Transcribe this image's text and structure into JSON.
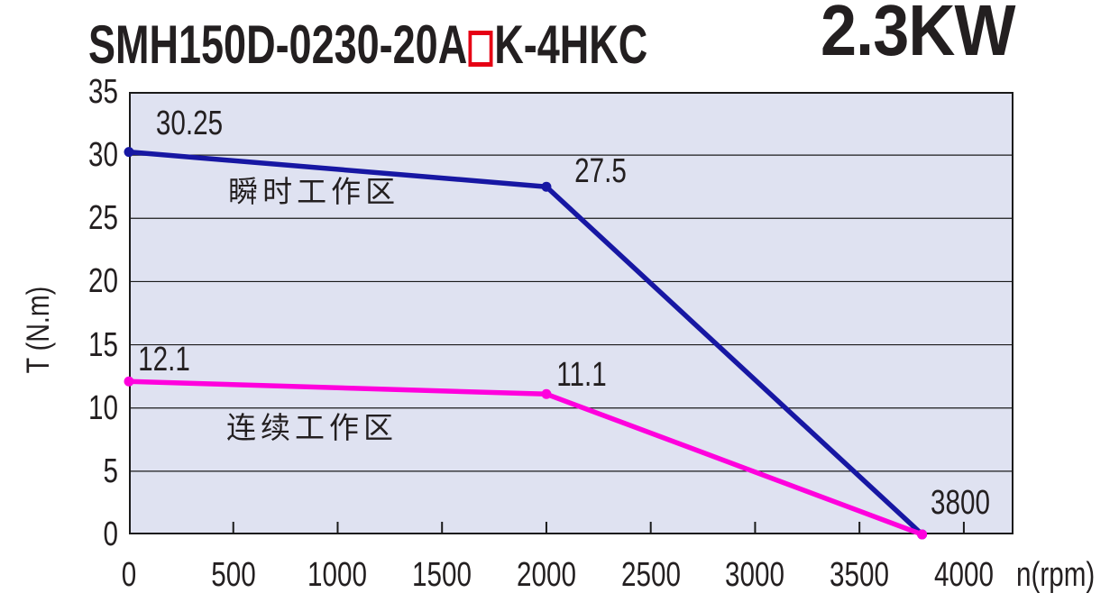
{
  "header": {
    "model_prefix": "SMH150D-0230-20A",
    "model_box": "□",
    "model_suffix": "K-4HKC",
    "power": "2.3KW"
  },
  "chart_data": {
    "type": "line",
    "title": "SMH150D-0230-20A□K-4HKC 2.3KW torque-speed curves",
    "xlabel": "n(rpm)",
    "ylabel": "T (N.m)",
    "xlim": [
      0,
      4238
    ],
    "ylim": [
      0,
      35
    ],
    "x_ticks": [
      0,
      500,
      1000,
      1500,
      2000,
      2500,
      3000,
      3500,
      4000
    ],
    "y_ticks": [
      0,
      5,
      10,
      15,
      20,
      25,
      30,
      35
    ],
    "grid": "horizontal-only",
    "legend_position": "in-plot-text",
    "plot_background": "#dfe2f1",
    "grid_color": "#1a1a1a",
    "series": [
      {
        "name": "瞬时工作区",
        "color": "#1717a3",
        "x": [
          0,
          2000,
          3800
        ],
        "y": [
          30.25,
          27.5,
          0
        ]
      },
      {
        "name": "连续工作区",
        "color": "#ff00dd",
        "x": [
          0,
          2000,
          3800
        ],
        "y": [
          12.1,
          11.1,
          0
        ]
      }
    ],
    "point_labels": [
      {
        "text": "30.25",
        "x": 290,
        "y": 32.5
      },
      {
        "text": "27.5",
        "x": 2260,
        "y": 28.7
      },
      {
        "text": "12.1",
        "x": 170,
        "y": 13.8
      },
      {
        "text": "11.1",
        "x": 2170,
        "y": 12.6
      },
      {
        "text": "3800",
        "x": 3983,
        "y": 2.5
      }
    ],
    "zone_labels": [
      {
        "text": "瞬时工作区",
        "x": 886,
        "y": 27.1
      },
      {
        "text": "连续工作区",
        "x": 877,
        "y": 8.4
      }
    ]
  }
}
